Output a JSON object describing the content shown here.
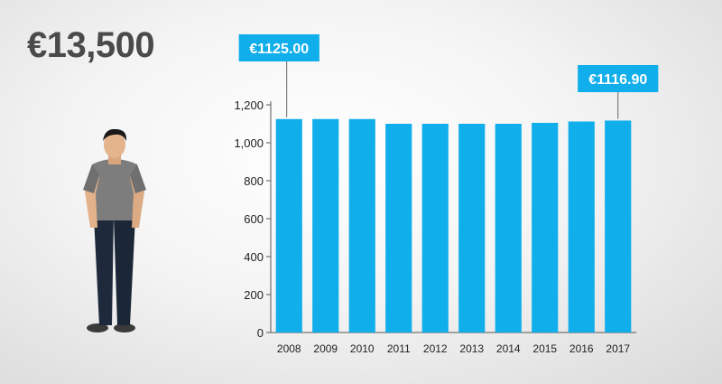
{
  "headline": "€13,500",
  "colors": {
    "bar": "#10aeea",
    "callout": "#10aeea",
    "axis": "#555555"
  },
  "figure_icon": "standing-man-icon",
  "callouts": [
    {
      "text": "€1125.00",
      "category": "2008"
    },
    {
      "text": "€1116.90",
      "category": "2017"
    }
  ],
  "chart_data": {
    "type": "bar",
    "categories": [
      "2008",
      "2009",
      "2010",
      "2011",
      "2012",
      "2013",
      "2014",
      "2015",
      "2016",
      "2017"
    ],
    "values": [
      1125,
      1125,
      1125,
      1100,
      1100,
      1100,
      1100,
      1105,
      1112,
      1116.9
    ],
    "yticks": [
      0,
      200,
      400,
      600,
      800,
      "1,000",
      "1,200"
    ],
    "ylim": [
      0,
      1200
    ],
    "grid": false,
    "title": "",
    "xlabel": "",
    "ylabel": ""
  }
}
